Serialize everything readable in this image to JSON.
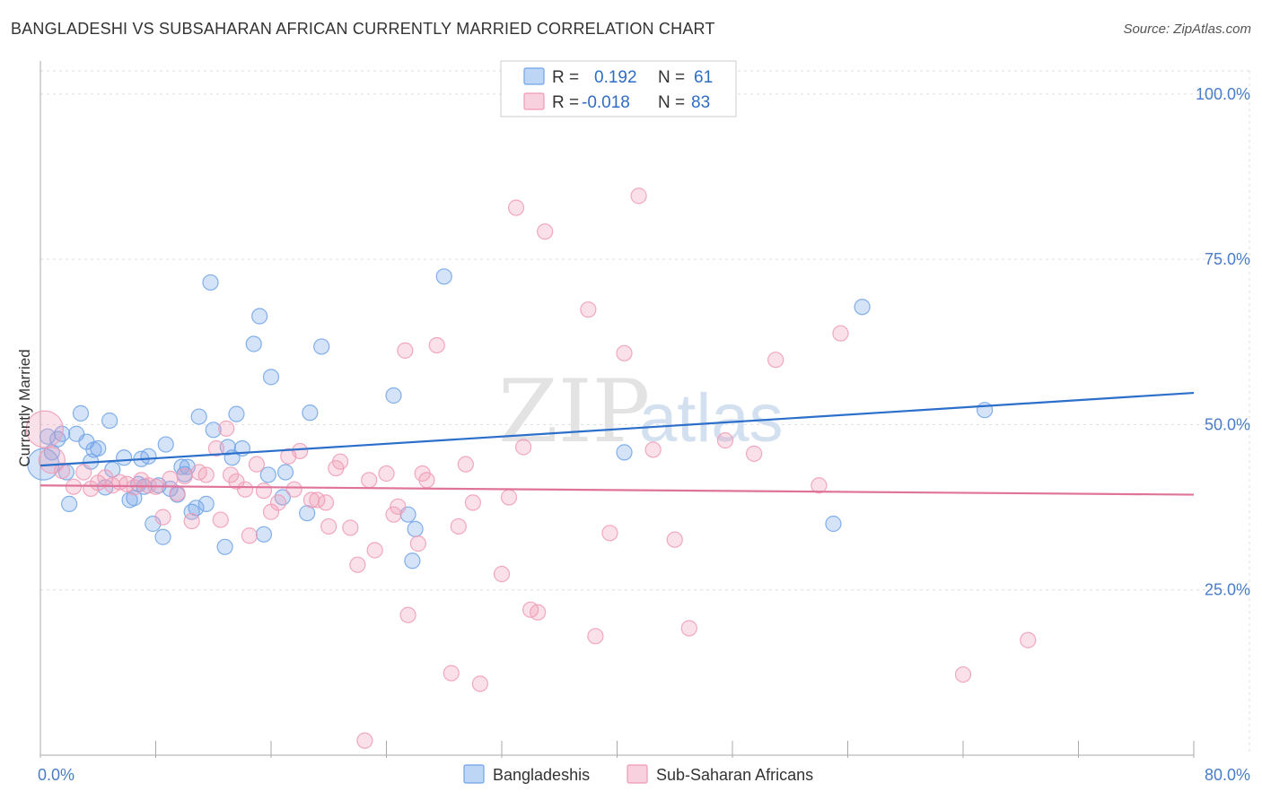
{
  "header": {
    "title": "BANGLADESHI VS SUBSAHARAN AFRICAN CURRENTLY MARRIED CORRELATION CHART",
    "source": "Source: ZipAtlas.com"
  },
  "watermark": {
    "zip": "ZIP",
    "atlas": "atlas"
  },
  "legend": {
    "rows": [
      {
        "r_label": "R =",
        "r_value": "0.192",
        "n_label": "N =",
        "n_value": "61",
        "color": "#6fa3e8"
      },
      {
        "r_label": "R =",
        "r_value": "-0.018",
        "n_label": "N =",
        "n_value": "83",
        "color": "#f09ab5"
      }
    ]
  },
  "bottom_legend": [
    {
      "label": "Bangladeshis",
      "color": "#6fa3e8"
    },
    {
      "label": "Sub-Saharan Africans",
      "color": "#f09ab5"
    }
  ],
  "chart_data": {
    "type": "scatter",
    "xlabel": "",
    "ylabel": "Currently Married",
    "xlim": [
      0,
      80
    ],
    "ylim": [
      0,
      105
    ],
    "x_tick_labels": [
      {
        "value": 0,
        "label": "0.0%"
      },
      {
        "value": 80,
        "label": "80.0%"
      }
    ],
    "y_tick_labels": [
      {
        "value": 25,
        "label": "25.0%"
      },
      {
        "value": 50,
        "label": "50.0%"
      },
      {
        "value": 75,
        "label": "75.0%"
      },
      {
        "value": 100,
        "label": "100.0%"
      }
    ],
    "grid": true,
    "series": [
      {
        "name": "Bangladeshis",
        "color": "#6fa3e8",
        "trend": {
          "x0": 0,
          "y0": 43.8,
          "x1": 80,
          "y1": 54.8
        },
        "points": [
          [
            0.2,
            44.0,
            3
          ],
          [
            0.5,
            48.2,
            1
          ],
          [
            0.8,
            45.8,
            1
          ],
          [
            1.2,
            47.8,
            1
          ],
          [
            1.5,
            48.6,
            1
          ],
          [
            1.8,
            42.8,
            1
          ],
          [
            2.0,
            38.0,
            1
          ],
          [
            2.5,
            48.6,
            1
          ],
          [
            2.8,
            51.7,
            1
          ],
          [
            3.2,
            47.4,
            1
          ],
          [
            3.5,
            44.4,
            1
          ],
          [
            3.7,
            46.2,
            1
          ],
          [
            4.0,
            46.4,
            1
          ],
          [
            4.5,
            40.5,
            1
          ],
          [
            4.8,
            50.6,
            1
          ],
          [
            5.0,
            43.2,
            1
          ],
          [
            5.8,
            45.0,
            1
          ],
          [
            6.2,
            38.6,
            1
          ],
          [
            6.5,
            38.9,
            1
          ],
          [
            6.8,
            41.0,
            1
          ],
          [
            7.0,
            44.8,
            1
          ],
          [
            7.2,
            40.6,
            1
          ],
          [
            7.5,
            45.2,
            1
          ],
          [
            7.8,
            35.0,
            1
          ],
          [
            8.2,
            40.8,
            1
          ],
          [
            8.5,
            33.0,
            1
          ],
          [
            8.7,
            47.0,
            1
          ],
          [
            9.0,
            40.3,
            1
          ],
          [
            9.5,
            39.4,
            1
          ],
          [
            9.8,
            43.6,
            1
          ],
          [
            10.0,
            42.5,
            1
          ],
          [
            10.2,
            43.6,
            1
          ],
          [
            10.5,
            36.8,
            1
          ],
          [
            10.8,
            37.4,
            1
          ],
          [
            11.0,
            51.2,
            1
          ],
          [
            11.5,
            38.0,
            1
          ],
          [
            11.8,
            71.5,
            1
          ],
          [
            12.0,
            49.2,
            1
          ],
          [
            12.8,
            31.5,
            1
          ],
          [
            13.0,
            46.6,
            1
          ],
          [
            13.3,
            45.0,
            1
          ],
          [
            13.6,
            51.6,
            1
          ],
          [
            14.0,
            46.4,
            1
          ],
          [
            14.8,
            62.2,
            1
          ],
          [
            15.2,
            66.4,
            1
          ],
          [
            15.5,
            33.4,
            1
          ],
          [
            15.8,
            42.4,
            1
          ],
          [
            16.0,
            57.2,
            1
          ],
          [
            16.8,
            39.0,
            1
          ],
          [
            17.0,
            42.8,
            1
          ],
          [
            18.5,
            36.6,
            1
          ],
          [
            18.7,
            51.8,
            1
          ],
          [
            19.5,
            61.8,
            1
          ],
          [
            24.5,
            54.4,
            1
          ],
          [
            25.5,
            36.4,
            1
          ],
          [
            25.8,
            29.4,
            1
          ],
          [
            26.0,
            34.2,
            1
          ],
          [
            28.0,
            72.4,
            1
          ],
          [
            40.5,
            45.8,
            1
          ],
          [
            55.0,
            35.0,
            1
          ],
          [
            57.0,
            67.8,
            1
          ],
          [
            65.5,
            52.2,
            1
          ]
        ]
      },
      {
        "name": "Sub-Saharan Africans",
        "color": "#f09ab5",
        "trend": {
          "x0": 0,
          "y0": 40.8,
          "x1": 80,
          "y1": 39.4
        },
        "points": [
          [
            0.3,
            49.3,
            4
          ],
          [
            0.8,
            44.6,
            2
          ],
          [
            1.5,
            43.0,
            1
          ],
          [
            2.3,
            40.6,
            1
          ],
          [
            3.0,
            42.8,
            1
          ],
          [
            3.5,
            40.3,
            1
          ],
          [
            4.0,
            41.2,
            1
          ],
          [
            4.5,
            42.0,
            1
          ],
          [
            5.0,
            40.8,
            1
          ],
          [
            5.5,
            41.3,
            1
          ],
          [
            6.0,
            41.0,
            1
          ],
          [
            6.5,
            40.5,
            1
          ],
          [
            7.0,
            41.6,
            1
          ],
          [
            7.5,
            40.8,
            1
          ],
          [
            8.0,
            40.6,
            1
          ],
          [
            8.5,
            36.0,
            1
          ],
          [
            9.0,
            41.8,
            1
          ],
          [
            9.5,
            39.6,
            1
          ],
          [
            10.0,
            42.2,
            1
          ],
          [
            10.5,
            35.4,
            1
          ],
          [
            11.0,
            42.8,
            1
          ],
          [
            11.5,
            42.4,
            1
          ],
          [
            12.2,
            46.4,
            1
          ],
          [
            12.5,
            35.6,
            1
          ],
          [
            12.9,
            49.4,
            1
          ],
          [
            13.2,
            42.4,
            1
          ],
          [
            13.6,
            41.4,
            1
          ],
          [
            14.2,
            40.2,
            1
          ],
          [
            14.5,
            33.2,
            1
          ],
          [
            15.0,
            44.0,
            1
          ],
          [
            15.5,
            40.0,
            1
          ],
          [
            16.0,
            36.8,
            1
          ],
          [
            16.5,
            38.2,
            1
          ],
          [
            17.2,
            45.2,
            1
          ],
          [
            17.6,
            40.2,
            1
          ],
          [
            18.0,
            46.0,
            1
          ],
          [
            18.8,
            38.6,
            1
          ],
          [
            19.2,
            38.6,
            1
          ],
          [
            19.8,
            38.2,
            1
          ],
          [
            20.0,
            34.6,
            1
          ],
          [
            20.5,
            43.4,
            1
          ],
          [
            20.8,
            44.4,
            1
          ],
          [
            21.5,
            34.4,
            1
          ],
          [
            22.0,
            28.8,
            1
          ],
          [
            22.5,
            2.2,
            1
          ],
          [
            22.8,
            41.6,
            1
          ],
          [
            23.2,
            31.0,
            1
          ],
          [
            24.0,
            42.6,
            1
          ],
          [
            24.5,
            36.4,
            1
          ],
          [
            24.8,
            37.6,
            1
          ],
          [
            25.3,
            61.2,
            1
          ],
          [
            25.5,
            21.2,
            1
          ],
          [
            26.2,
            32.0,
            1
          ],
          [
            26.5,
            42.6,
            1
          ],
          [
            26.8,
            41.6,
            1
          ],
          [
            27.5,
            62.0,
            1
          ],
          [
            28.5,
            12.4,
            1
          ],
          [
            29.0,
            34.6,
            1
          ],
          [
            29.5,
            44.0,
            1
          ],
          [
            30.0,
            38.2,
            1
          ],
          [
            30.5,
            10.8,
            1
          ],
          [
            32.0,
            27.4,
            1
          ],
          [
            32.5,
            39.0,
            1
          ],
          [
            33.0,
            82.8,
            1
          ],
          [
            33.5,
            46.6,
            1
          ],
          [
            34.0,
            22.0,
            1
          ],
          [
            34.5,
            21.6,
            1
          ],
          [
            35.0,
            79.2,
            1
          ],
          [
            38.0,
            67.4,
            1
          ],
          [
            38.5,
            18.0,
            1
          ],
          [
            39.5,
            33.6,
            1
          ],
          [
            40.5,
            60.8,
            1
          ],
          [
            41.5,
            84.6,
            1
          ],
          [
            42.5,
            46.2,
            1
          ],
          [
            44.0,
            32.6,
            1
          ],
          [
            45.0,
            19.2,
            1
          ],
          [
            47.5,
            47.6,
            1
          ],
          [
            49.5,
            45.6,
            1
          ],
          [
            51.0,
            59.8,
            1
          ],
          [
            54.0,
            40.8,
            1
          ],
          [
            55.5,
            63.8,
            1
          ],
          [
            64.0,
            12.2,
            1
          ],
          [
            68.5,
            17.4,
            1
          ]
        ]
      }
    ]
  }
}
